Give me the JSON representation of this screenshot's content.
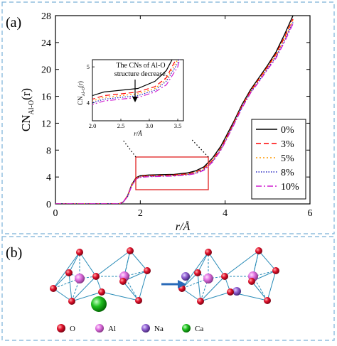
{
  "panel_a": {
    "label": "(a)",
    "chart_data": {
      "type": "line",
      "xlabel": "r/Å",
      "ylabel": "CN",
      "ylabel_sub": "Al-O",
      "ylabel_tail": "(r)",
      "xlim": [
        0,
        6
      ],
      "ylim": [
        0,
        28
      ],
      "xticks": [
        "0",
        "2",
        "4",
        "6"
      ],
      "yticks": [
        "0",
        "4",
        "8",
        "12",
        "16",
        "20",
        "24",
        "28"
      ],
      "grid": false,
      "legend_position": "right",
      "series": [
        {
          "name": "0%",
          "color": "#000000",
          "dash": "",
          "x": [
            0,
            1.5,
            1.6,
            1.7,
            1.8,
            1.9,
            2.0,
            2.2,
            2.5,
            2.8,
            3.1,
            3.3,
            3.5,
            3.7,
            3.9,
            4.0,
            4.2,
            4.4,
            4.6,
            4.8,
            5.0,
            5.2,
            5.4,
            5.6
          ],
          "y": [
            0,
            0,
            0.3,
            1.2,
            2.9,
            3.9,
            4.2,
            4.3,
            4.35,
            4.4,
            4.6,
            4.9,
            5.5,
            6.8,
            8.6,
            9.8,
            12.2,
            14.8,
            17.0,
            18.8,
            20.6,
            22.6,
            25.2,
            28
          ]
        },
        {
          "name": "3%",
          "color": "#ff0000",
          "dash": "7,4",
          "x": [
            0,
            1.5,
            1.6,
            1.7,
            1.8,
            1.9,
            2.0,
            2.2,
            2.5,
            2.8,
            3.1,
            3.3,
            3.5,
            3.7,
            3.9,
            4.0,
            4.2,
            4.4,
            4.6,
            4.8,
            5.0,
            5.2,
            5.4,
            5.6
          ],
          "y": [
            0,
            0,
            0.3,
            1.2,
            2.8,
            3.8,
            4.1,
            4.2,
            4.25,
            4.3,
            4.45,
            4.7,
            5.3,
            6.5,
            8.3,
            9.5,
            12.0,
            14.6,
            16.8,
            18.6,
            20.4,
            22.3,
            24.8,
            27.5
          ]
        },
        {
          "name": "5%",
          "color": "#ff9900",
          "dash": "2,3",
          "x": [
            0,
            1.5,
            1.6,
            1.7,
            1.8,
            1.9,
            2.0,
            2.2,
            2.5,
            2.8,
            3.1,
            3.3,
            3.5,
            3.7,
            3.9,
            4.0,
            4.2,
            4.4,
            4.6,
            4.8,
            5.0,
            5.2,
            5.4,
            5.6
          ],
          "y": [
            0,
            0,
            0.3,
            1.1,
            2.8,
            3.8,
            4.05,
            4.15,
            4.2,
            4.25,
            4.4,
            4.65,
            5.2,
            6.4,
            8.2,
            9.4,
            11.9,
            14.5,
            16.7,
            18.5,
            20.3,
            22.1,
            24.6,
            27.3
          ]
        },
        {
          "name": "8%",
          "color": "#2020c0",
          "dash": "1.5,2",
          "x": [
            0,
            1.5,
            1.6,
            1.7,
            1.8,
            1.9,
            2.0,
            2.2,
            2.5,
            2.8,
            3.1,
            3.3,
            3.5,
            3.7,
            3.9,
            4.0,
            4.2,
            4.4,
            4.6,
            4.8,
            5.0,
            5.2,
            5.4,
            5.6
          ],
          "y": [
            0,
            0,
            0.3,
            1.1,
            2.7,
            3.7,
            4.0,
            4.1,
            4.15,
            4.2,
            4.35,
            4.6,
            5.1,
            6.3,
            8.1,
            9.3,
            11.8,
            14.4,
            16.6,
            18.3,
            20.1,
            21.9,
            24.3,
            27.0
          ]
        },
        {
          "name": "10%",
          "color": "#d020d0",
          "dash": "8,3,2,3",
          "x": [
            0,
            1.5,
            1.6,
            1.7,
            1.8,
            1.9,
            2.0,
            2.2,
            2.5,
            2.8,
            3.1,
            3.3,
            3.5,
            3.7,
            3.9,
            4.0,
            4.2,
            4.4,
            4.6,
            4.8,
            5.0,
            5.2,
            5.4,
            5.6
          ],
          "y": [
            0,
            0,
            0.3,
            1.1,
            2.7,
            3.7,
            3.95,
            4.05,
            4.1,
            4.15,
            4.3,
            4.5,
            5.0,
            6.2,
            8.0,
            9.2,
            11.7,
            14.3,
            16.5,
            18.2,
            20.0,
            21.7,
            24.1,
            26.8
          ]
        }
      ],
      "inset": {
        "annotation": [
          "The CNs of Al-O",
          "structure decrease."
        ],
        "xlabel": "r/Å",
        "ylabel": "CN",
        "ylabel_sub": "Al-O",
        "ylabel_tail": "(r)",
        "xlim": [
          2.0,
          3.6
        ],
        "ylim": [
          3.5,
          5.2
        ],
        "xticks": [
          "2.0",
          "2.5",
          "3.0",
          "3.5"
        ],
        "yticks": [
          "4",
          "5"
        ]
      }
    }
  },
  "panel_b": {
    "label": "(b)",
    "legend": [
      {
        "label": "O",
        "color": "#e0102a"
      },
      {
        "label": "Al",
        "color": "#e070e0"
      },
      {
        "label": "Na",
        "color": "#9060d0"
      },
      {
        "label": "Ca",
        "color": "#20c020"
      }
    ]
  }
}
